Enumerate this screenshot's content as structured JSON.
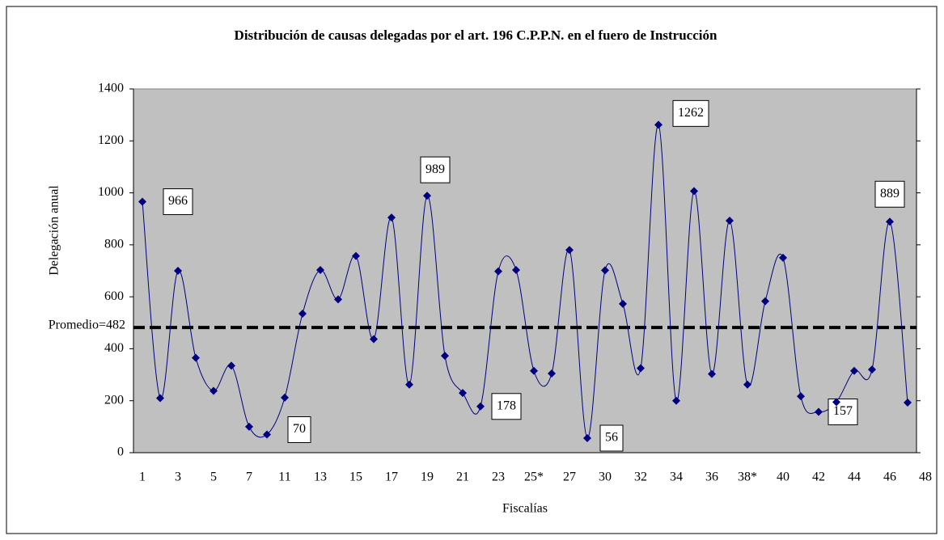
{
  "chart_data": {
    "type": "line",
    "title": "Distribución de causas delegadas por el art. 196 C.P.P.N. en el fuero de Instrucción",
    "y_label": "Delegación anual",
    "x_label": "Fiscalías",
    "categories": [
      "1",
      null,
      "3",
      null,
      "5",
      null,
      "7",
      null,
      "11",
      null,
      "13",
      null,
      "15",
      null,
      "17",
      null,
      "19",
      null,
      "21",
      null,
      "23",
      null,
      "25*",
      null,
      "27",
      null,
      "30",
      null,
      "32",
      null,
      "34",
      null,
      "36",
      null,
      "38*",
      null,
      "40",
      null,
      "42",
      null,
      "44",
      null,
      "46",
      null,
      "48"
    ],
    "series": [
      {
        "name": null,
        "color": "#000080",
        "values": [
          966,
          210,
          700,
          365,
          238,
          335,
          100,
          70,
          212,
          535,
          703,
          590,
          757,
          437,
          905,
          262,
          989,
          373,
          230,
          178,
          698,
          703,
          315,
          305,
          780,
          56,
          702,
          573,
          325,
          1262,
          200,
          1007,
          303,
          893,
          262,
          583,
          750,
          217,
          157,
          195,
          315,
          320,
          889,
          193,
          null
        ],
        "value_labels": [
          "966",
          null,
          null,
          null,
          null,
          null,
          null,
          "70",
          null,
          null,
          null,
          null,
          null,
          null,
          null,
          null,
          "989",
          null,
          null,
          "178",
          null,
          null,
          null,
          null,
          null,
          "56",
          null,
          null,
          null,
          "1262",
          null,
          null,
          null,
          null,
          null,
          null,
          null,
          null,
          "157",
          null,
          null,
          null,
          "889",
          null,
          null
        ]
      }
    ],
    "ylim": [
      0,
      1400
    ],
    "yticks": [
      0,
      200,
      400,
      600,
      800,
      1000,
      1200,
      1400
    ],
    "reference_line": {
      "value": 482,
      "label": "Promedio=482"
    },
    "background": "#c0c0c0"
  }
}
